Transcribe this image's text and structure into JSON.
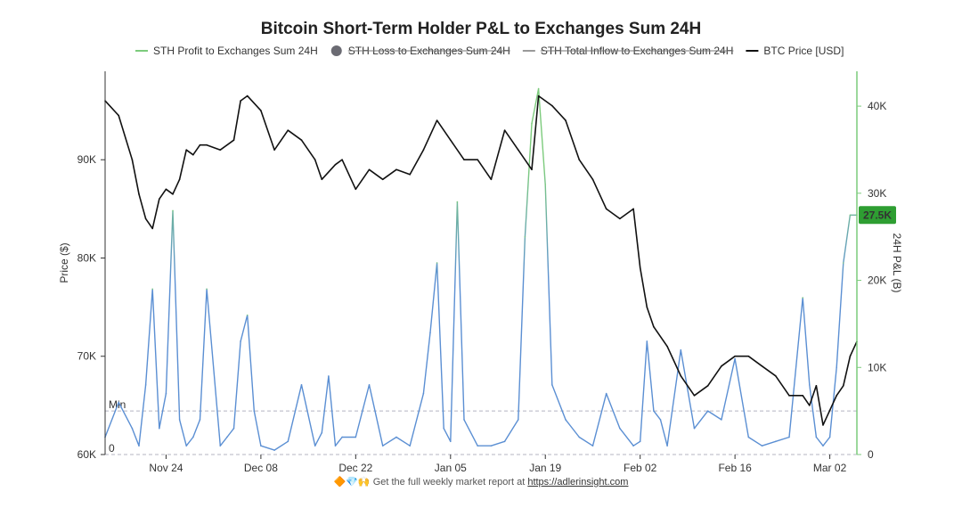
{
  "chart_data": {
    "type": "line",
    "title": "Bitcoin Short-Term Holder P&L to Exchanges Sum 24H",
    "legend": {
      "placement": "top",
      "items": [
        {
          "name": "STH Profit to Exchanges Sum 24H",
          "color": "#7ccb7c",
          "marker": "line",
          "struck": false
        },
        {
          "name": "STH Loss to Exchanges Sum 24H",
          "color": "#6b6b73",
          "marker": "dot",
          "struck": true
        },
        {
          "name": "STH Total Inflow to Exchanges Sum 24H",
          "color": "#9a9a9a",
          "marker": "line",
          "struck": true
        },
        {
          "name": "BTC Price [USD]",
          "color": "#111111",
          "marker": "line",
          "struck": false
        }
      ]
    },
    "left_axis": {
      "label": "Price ($)",
      "min": 60000,
      "max": 99000,
      "ticks": [
        60000,
        70000,
        80000,
        90000
      ],
      "tick_labels": [
        "60K",
        "70K",
        "80K",
        "90K"
      ]
    },
    "right_axis": {
      "label": "24H P&L (B)",
      "min": 0,
      "max": 44000,
      "ticks": [
        0,
        10000,
        20000,
        30000,
        40000
      ],
      "tick_labels": [
        "0",
        "10K",
        "20K",
        "30K",
        "40K"
      ]
    },
    "x_axis": {
      "start": "2024-11-15",
      "end": "2025-03-06",
      "ticks": [
        "2024-11-24",
        "2024-12-08",
        "2024-12-22",
        "2025-01-05",
        "2025-01-19",
        "2025-02-02",
        "2025-02-16",
        "2025-03-02"
      ],
      "tick_labels": [
        "Nov 24",
        "Dec 08",
        "Dec 22",
        "Jan 05",
        "Jan 19",
        "Feb 02",
        "Feb 16",
        "Mar 02"
      ]
    },
    "reference_lines": [
      {
        "label": "Min",
        "value": 5000,
        "axis": "right"
      },
      {
        "label": "0",
        "value": 0,
        "axis": "right"
      }
    ],
    "current_value_badge": {
      "text": "27.5K",
      "value": 27500,
      "axis": "right",
      "color": "#2e9e32"
    },
    "series": [
      {
        "name": "BTC Price [USD]",
        "axis": "left",
        "color": "#111111",
        "x": [
          "2024-11-15",
          "2024-11-17",
          "2024-11-19",
          "2024-11-20",
          "2024-11-21",
          "2024-11-22",
          "2024-11-23",
          "2024-11-24",
          "2024-11-25",
          "2024-11-26",
          "2024-11-27",
          "2024-11-28",
          "2024-11-29",
          "2024-11-30",
          "2024-12-02",
          "2024-12-04",
          "2024-12-05",
          "2024-12-06",
          "2024-12-08",
          "2024-12-10",
          "2024-12-12",
          "2024-12-14",
          "2024-12-16",
          "2024-12-17",
          "2024-12-19",
          "2024-12-20",
          "2024-12-22",
          "2024-12-24",
          "2024-12-26",
          "2024-12-28",
          "2024-12-30",
          "2025-01-01",
          "2025-01-03",
          "2025-01-05",
          "2025-01-07",
          "2025-01-09",
          "2025-01-11",
          "2025-01-13",
          "2025-01-15",
          "2025-01-17",
          "2025-01-18",
          "2025-01-20",
          "2025-01-22",
          "2025-01-24",
          "2025-01-26",
          "2025-01-28",
          "2025-01-30",
          "2025-02-01",
          "2025-02-02",
          "2025-02-03",
          "2025-02-04",
          "2025-02-06",
          "2025-02-08",
          "2025-02-10",
          "2025-02-12",
          "2025-02-14",
          "2025-02-16",
          "2025-02-18",
          "2025-02-20",
          "2025-02-22",
          "2025-02-24",
          "2025-02-26",
          "2025-02-27",
          "2025-02-28",
          "2025-03-01",
          "2025-03-02",
          "2025-03-03",
          "2025-03-04",
          "2025-03-05",
          "2025-03-06"
        ],
        "values": [
          96000,
          94500,
          90000,
          86500,
          84000,
          83000,
          86000,
          87000,
          86500,
          88000,
          91000,
          90500,
          91500,
          91500,
          91000,
          92000,
          96000,
          96500,
          95000,
          91000,
          93000,
          92000,
          90000,
          88000,
          89500,
          90000,
          87000,
          89000,
          88000,
          89000,
          88500,
          91000,
          94000,
          92000,
          90000,
          90000,
          88000,
          93000,
          91000,
          89000,
          96500,
          95500,
          94000,
          90000,
          88000,
          85000,
          84000,
          85000,
          79000,
          75000,
          73000,
          71000,
          68000,
          66000,
          67000,
          69000,
          70000,
          70000,
          69000,
          68000,
          66000,
          66000,
          65000,
          67000,
          63000,
          64500,
          66000,
          67000,
          70000,
          71500
        ]
      },
      {
        "name": "STH Profit to Exchanges Sum 24H",
        "axis": "right",
        "color_low": "#5b8fd3",
        "color_high": "#7ccb7c",
        "x": [
          "2024-11-15",
          "2024-11-17",
          "2024-11-19",
          "2024-11-20",
          "2024-11-21",
          "2024-11-22",
          "2024-11-23",
          "2024-11-24",
          "2024-11-25",
          "2024-11-26",
          "2024-11-27",
          "2024-11-28",
          "2024-11-29",
          "2024-11-30",
          "2024-12-02",
          "2024-12-03",
          "2024-12-04",
          "2024-12-05",
          "2024-12-06",
          "2024-12-07",
          "2024-12-08",
          "2024-12-10",
          "2024-12-12",
          "2024-12-14",
          "2024-12-16",
          "2024-12-17",
          "2024-12-18",
          "2024-12-19",
          "2024-12-20",
          "2024-12-22",
          "2024-12-24",
          "2024-12-26",
          "2024-12-28",
          "2024-12-30",
          "2025-01-01",
          "2025-01-02",
          "2025-01-03",
          "2025-01-04",
          "2025-01-05",
          "2025-01-06",
          "2025-01-07",
          "2025-01-09",
          "2025-01-11",
          "2025-01-13",
          "2025-01-15",
          "2025-01-16",
          "2025-01-17",
          "2025-01-18",
          "2025-01-19",
          "2025-01-20",
          "2025-01-22",
          "2025-01-24",
          "2025-01-26",
          "2025-01-28",
          "2025-01-30",
          "2025-02-01",
          "2025-02-02",
          "2025-02-03",
          "2025-02-04",
          "2025-02-05",
          "2025-02-06",
          "2025-02-08",
          "2025-02-10",
          "2025-02-12",
          "2025-02-14",
          "2025-02-16",
          "2025-02-18",
          "2025-02-20",
          "2025-02-22",
          "2025-02-24",
          "2025-02-26",
          "2025-02-27",
          "2025-02-28",
          "2025-03-01",
          "2025-03-02",
          "2025-03-03",
          "2025-03-04",
          "2025-03-05",
          "2025-03-06"
        ],
        "values": [
          2000,
          6000,
          3000,
          1000,
          8000,
          19000,
          3000,
          7000,
          28000,
          4000,
          1000,
          2000,
          4000,
          19000,
          1000,
          2000,
          3000,
          13000,
          16000,
          5000,
          1000,
          500,
          1500,
          8000,
          1000,
          2500,
          9000,
          1000,
          2000,
          2000,
          8000,
          1000,
          2000,
          1000,
          7000,
          14000,
          22000,
          3000,
          1500,
          29000,
          4000,
          1000,
          1000,
          1500,
          4000,
          25000,
          38000,
          42000,
          31000,
          8000,
          4000,
          2000,
          1000,
          7000,
          3000,
          1000,
          1500,
          13000,
          5000,
          4000,
          1000,
          12000,
          3000,
          5000,
          4000,
          11000,
          2000,
          1000,
          1500,
          2000,
          18000,
          8000,
          2000,
          1000,
          2000,
          10000,
          22000,
          27500,
          27500
        ]
      }
    ]
  },
  "footer": {
    "prefix_emoji": "🔶💎🙌",
    "text": "Get the full weekly market report at",
    "link_text": "https://adlerinsight.com"
  }
}
